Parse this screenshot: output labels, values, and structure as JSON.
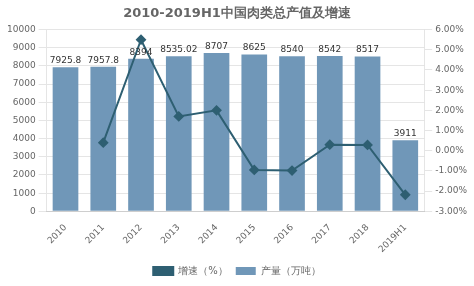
{
  "chart_data": {
    "type": "bar",
    "title": "2010-2019H1中国肉类总产值及增速",
    "categories": [
      "2010",
      "2011",
      "2012",
      "2013",
      "2014",
      "2015",
      "2016",
      "2017",
      "2018",
      "2019H1"
    ],
    "series": [
      {
        "name": "产量（万吨）",
        "type": "bar",
        "color": "#7097b8",
        "data_labels": true,
        "values": [
          7925.8,
          7957.8,
          8394,
          8535.02,
          8707,
          8625,
          8540,
          8542,
          8517,
          3911
        ]
      },
      {
        "name": "增速（%）",
        "type": "line",
        "axis": "y2",
        "color": "#2e5f72",
        "marker": "diamond",
        "values": [
          null,
          0.4,
          5.5,
          1.7,
          2.0,
          -0.95,
          -0.98,
          0.3,
          0.29,
          -2.18
        ]
      }
    ],
    "ylim": [
      0,
      10000
    ],
    "yticks": [
      0,
      1000,
      2000,
      3000,
      4000,
      5000,
      6000,
      7000,
      8000,
      9000,
      10000
    ],
    "y2lim": [
      -3.0,
      6.0
    ],
    "y2ticks": [
      {
        "value": -3.0,
        "label": "-3.00%"
      },
      {
        "value": -2.0,
        "label": "-2.00%"
      },
      {
        "value": -1.0,
        "label": "-1.00%"
      },
      {
        "value": 0.0,
        "label": "0.00%"
      },
      {
        "value": 1.0,
        "label": "1.00%"
      },
      {
        "value": 2.0,
        "label": "2.00%"
      },
      {
        "value": 3.0,
        "label": "3.00%"
      },
      {
        "value": 4.0,
        "label": "4.00%"
      },
      {
        "value": 5.0,
        "label": "5.00%"
      },
      {
        "value": 6.0,
        "label": "6.00%"
      }
    ],
    "grid": true,
    "legend": "bottom"
  }
}
